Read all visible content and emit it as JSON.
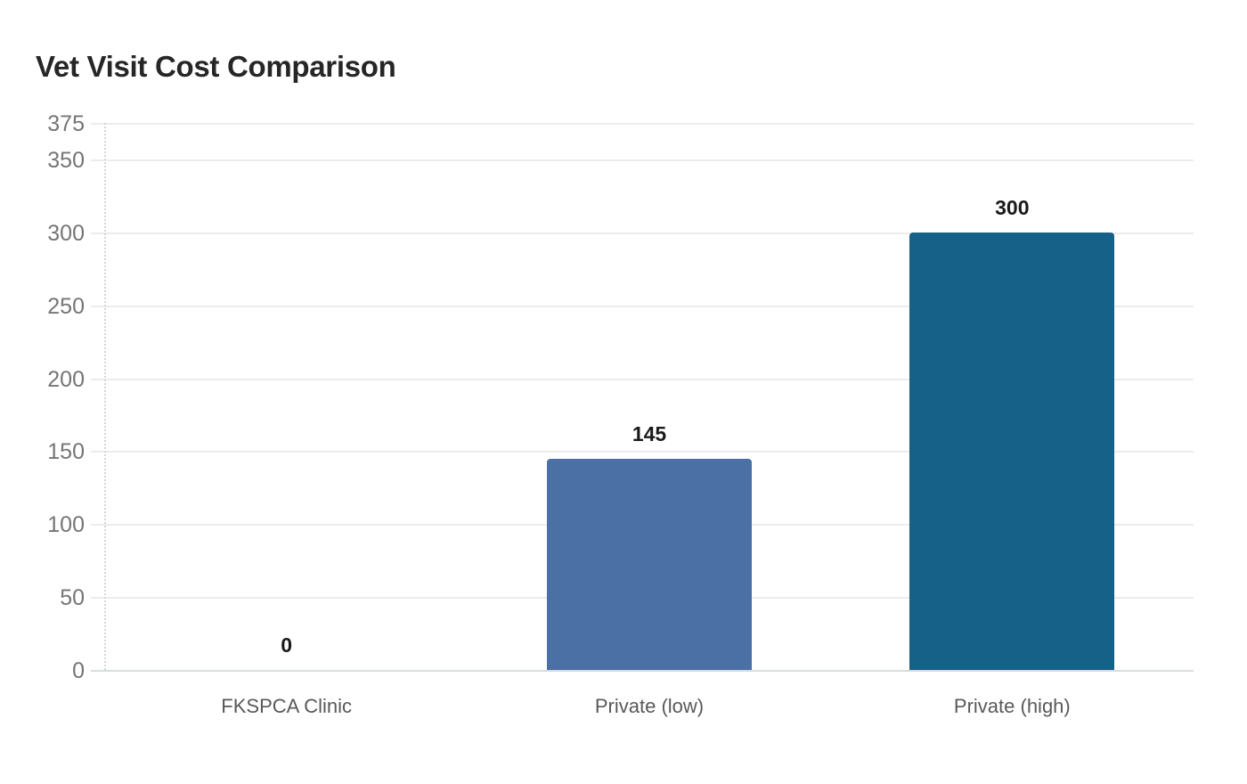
{
  "chart_data": {
    "type": "bar",
    "title": "Vet Visit Cost Comparison",
    "categories": [
      "FKSPCA Clinic",
      "Private (low)",
      "Private (high)"
    ],
    "values": [
      0,
      145,
      300
    ],
    "value_labels": [
      "0",
      "145",
      "300"
    ],
    "bar_colors": [
      null,
      "#4b70a6",
      "#156187"
    ],
    "xlabel": "",
    "ylabel": "",
    "ylim": [
      0,
      375
    ],
    "yticks": [
      0,
      50,
      100,
      150,
      200,
      250,
      300,
      350,
      375
    ],
    "grid": "horizontal-only",
    "legend": "none"
  },
  "style": {
    "background": "#ffffff",
    "title_color": "#262626",
    "gridline_color": "#ececec",
    "baseline_color": "#d8dcdc",
    "axis_line_color": "#d6d6d6",
    "tick_label_color": "#757575",
    "category_label_color": "#595959",
    "value_label_color": "#1a1a1a"
  }
}
